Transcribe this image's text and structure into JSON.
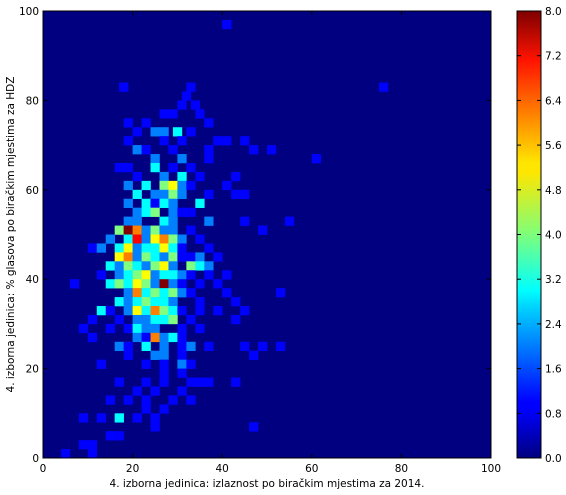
{
  "chart_data": {
    "type": "heatmap",
    "title": "",
    "xlabel": "4. izborna jedinica: izlaznost po biračkim mjestima za 2014.",
    "ylabel": "4. izborna jedinica: % glasova po biračkim mjestima za HDZ",
    "xlim": [
      0,
      100
    ],
    "ylim": [
      0,
      100
    ],
    "bins": 50,
    "grid": false,
    "colormap": "jet",
    "colorbar": {
      "min": 0.0,
      "max": 8.0,
      "ticks": [
        "0.0",
        "0.8",
        "1.6",
        "2.4",
        "3.2",
        "4.0",
        "4.8",
        "5.6",
        "6.4",
        "7.2",
        "8.0"
      ]
    },
    "x_ticks": [
      "0",
      "20",
      "40",
      "60",
      "80",
      "100"
    ],
    "y_ticks": [
      "0",
      "20",
      "40",
      "60",
      "80",
      "100"
    ],
    "cells": [
      [
        40,
        96,
        1
      ],
      [
        75,
        82,
        1
      ],
      [
        32,
        82,
        1
      ],
      [
        31,
        80,
        1
      ],
      [
        30,
        78,
        1
      ],
      [
        33,
        78,
        1
      ],
      [
        17,
        82,
        1
      ],
      [
        26,
        76,
        1
      ],
      [
        28,
        76,
        1
      ],
      [
        34,
        76,
        1
      ],
      [
        36,
        74,
        1
      ],
      [
        18,
        74,
        1
      ],
      [
        22,
        74,
        1
      ],
      [
        24,
        72,
        2
      ],
      [
        26,
        72,
        2
      ],
      [
        20,
        72,
        1
      ],
      [
        29,
        72,
        3
      ],
      [
        32,
        72,
        1
      ],
      [
        38,
        70,
        1
      ],
      [
        40,
        70,
        1
      ],
      [
        44,
        70,
        1
      ],
      [
        18,
        70,
        1
      ],
      [
        26,
        70,
        1
      ],
      [
        30,
        70,
        1
      ],
      [
        46,
        68,
        1
      ],
      [
        50,
        68,
        1
      ],
      [
        20,
        68,
        2
      ],
      [
        22,
        68,
        1
      ],
      [
        28,
        68,
        1
      ],
      [
        36,
        68,
        1
      ],
      [
        60,
        66,
        1
      ],
      [
        36,
        66,
        1
      ],
      [
        24,
        66,
        2
      ],
      [
        30,
        66,
        2
      ],
      [
        16,
        64,
        1
      ],
      [
        18,
        64,
        1
      ],
      [
        24,
        64,
        3
      ],
      [
        28,
        64,
        1
      ],
      [
        32,
        64,
        1
      ],
      [
        26,
        62,
        2
      ],
      [
        30,
        62,
        3
      ],
      [
        34,
        62,
        1
      ],
      [
        20,
        62,
        1
      ],
      [
        42,
        62,
        1
      ],
      [
        22,
        60,
        3
      ],
      [
        26,
        60,
        4
      ],
      [
        28,
        60,
        5
      ],
      [
        30,
        60,
        2
      ],
      [
        18,
        60,
        2
      ],
      [
        32,
        60,
        1
      ],
      [
        40,
        60,
        1
      ],
      [
        20,
        58,
        3
      ],
      [
        24,
        58,
        2
      ],
      [
        26,
        58,
        2
      ],
      [
        28,
        58,
        4
      ],
      [
        30,
        58,
        2
      ],
      [
        36,
        58,
        1
      ],
      [
        42,
        58,
        1
      ],
      [
        44,
        58,
        1
      ],
      [
        18,
        56,
        2
      ],
      [
        22,
        56,
        3
      ],
      [
        24,
        56,
        1
      ],
      [
        26,
        56,
        3
      ],
      [
        28,
        56,
        2
      ],
      [
        34,
        56,
        3
      ],
      [
        20,
        54,
        2
      ],
      [
        22,
        54,
        3
      ],
      [
        24,
        54,
        4
      ],
      [
        28,
        54,
        2
      ],
      [
        30,
        54,
        1
      ],
      [
        32,
        54,
        1
      ],
      [
        18,
        52,
        2
      ],
      [
        20,
        52,
        2
      ],
      [
        26,
        52,
        3
      ],
      [
        28,
        52,
        2
      ],
      [
        36,
        52,
        2
      ],
      [
        54,
        52,
        1
      ],
      [
        44,
        52,
        1
      ],
      [
        16,
        50,
        4
      ],
      [
        18,
        50,
        8
      ],
      [
        20,
        50,
        6
      ],
      [
        22,
        50,
        2
      ],
      [
        24,
        50,
        4
      ],
      [
        26,
        50,
        2
      ],
      [
        28,
        50,
        2
      ],
      [
        32,
        50,
        1
      ],
      [
        14,
        48,
        2
      ],
      [
        18,
        48,
        3
      ],
      [
        20,
        48,
        7
      ],
      [
        22,
        48,
        2
      ],
      [
        24,
        48,
        5
      ],
      [
        26,
        48,
        6
      ],
      [
        28,
        48,
        4
      ],
      [
        30,
        48,
        2
      ],
      [
        34,
        48,
        1
      ],
      [
        48,
        50,
        1
      ],
      [
        10,
        46,
        1
      ],
      [
        12,
        46,
        2
      ],
      [
        16,
        46,
        3
      ],
      [
        18,
        46,
        5
      ],
      [
        20,
        46,
        2
      ],
      [
        22,
        46,
        3
      ],
      [
        24,
        46,
        3
      ],
      [
        26,
        46,
        5
      ],
      [
        28,
        46,
        3
      ],
      [
        30,
        46,
        1
      ],
      [
        36,
        46,
        1
      ],
      [
        16,
        44,
        5
      ],
      [
        18,
        44,
        6
      ],
      [
        20,
        44,
        2
      ],
      [
        22,
        44,
        4
      ],
      [
        24,
        44,
        3
      ],
      [
        26,
        44,
        2
      ],
      [
        28,
        44,
        4
      ],
      [
        30,
        44,
        1
      ],
      [
        32,
        44,
        1
      ],
      [
        34,
        44,
        2
      ],
      [
        38,
        44,
        1
      ],
      [
        14,
        42,
        3
      ],
      [
        16,
        42,
        2
      ],
      [
        18,
        42,
        4
      ],
      [
        20,
        42,
        3
      ],
      [
        22,
        42,
        2
      ],
      [
        24,
        42,
        4
      ],
      [
        26,
        42,
        5
      ],
      [
        28,
        42,
        2
      ],
      [
        32,
        42,
        4
      ],
      [
        34,
        42,
        3
      ],
      [
        36,
        42,
        2
      ],
      [
        12,
        40,
        1
      ],
      [
        16,
        40,
        2
      ],
      [
        18,
        40,
        3
      ],
      [
        20,
        40,
        4
      ],
      [
        22,
        40,
        5
      ],
      [
        24,
        40,
        2
      ],
      [
        26,
        40,
        3
      ],
      [
        28,
        40,
        3
      ],
      [
        30,
        40,
        2
      ],
      [
        32,
        40,
        1
      ],
      [
        36,
        40,
        1
      ],
      [
        40,
        40,
        1
      ],
      [
        6,
        38,
        1
      ],
      [
        14,
        38,
        3
      ],
      [
        16,
        38,
        4
      ],
      [
        18,
        38,
        3
      ],
      [
        20,
        38,
        5
      ],
      [
        22,
        38,
        4
      ],
      [
        24,
        38,
        2
      ],
      [
        26,
        38,
        8
      ],
      [
        28,
        38,
        2
      ],
      [
        30,
        38,
        1
      ],
      [
        34,
        38,
        1
      ],
      [
        38,
        38,
        1
      ],
      [
        18,
        36,
        2
      ],
      [
        20,
        36,
        6
      ],
      [
        22,
        36,
        3
      ],
      [
        24,
        36,
        4
      ],
      [
        26,
        36,
        3
      ],
      [
        28,
        36,
        4
      ],
      [
        30,
        36,
        2
      ],
      [
        32,
        36,
        1
      ],
      [
        52,
        36,
        1
      ],
      [
        40,
        36,
        1
      ],
      [
        16,
        34,
        3
      ],
      [
        18,
        34,
        2
      ],
      [
        20,
        34,
        3
      ],
      [
        22,
        34,
        4
      ],
      [
        24,
        34,
        3
      ],
      [
        26,
        34,
        3
      ],
      [
        28,
        34,
        2
      ],
      [
        34,
        34,
        1
      ],
      [
        42,
        34,
        1
      ],
      [
        12,
        32,
        3
      ],
      [
        14,
        32,
        1
      ],
      [
        18,
        32,
        2
      ],
      [
        20,
        32,
        5
      ],
      [
        22,
        32,
        3
      ],
      [
        24,
        32,
        6
      ],
      [
        26,
        32,
        4
      ],
      [
        28,
        32,
        3
      ],
      [
        30,
        32,
        1
      ],
      [
        34,
        32,
        1
      ],
      [
        38,
        32,
        1
      ],
      [
        44,
        32,
        1
      ],
      [
        10,
        30,
        1
      ],
      [
        16,
        30,
        1
      ],
      [
        20,
        30,
        2
      ],
      [
        22,
        30,
        2
      ],
      [
        24,
        30,
        3
      ],
      [
        26,
        30,
        3
      ],
      [
        28,
        30,
        4
      ],
      [
        32,
        30,
        1
      ],
      [
        42,
        30,
        1
      ],
      [
        8,
        28,
        1
      ],
      [
        14,
        28,
        1
      ],
      [
        18,
        28,
        1
      ],
      [
        20,
        28,
        3
      ],
      [
        22,
        28,
        2
      ],
      [
        24,
        28,
        2
      ],
      [
        30,
        28,
        1
      ],
      [
        34,
        28,
        1
      ],
      [
        10,
        26,
        1
      ],
      [
        20,
        26,
        2
      ],
      [
        22,
        26,
        1
      ],
      [
        24,
        26,
        6
      ],
      [
        26,
        26,
        2
      ],
      [
        28,
        26,
        3
      ],
      [
        30,
        26,
        1
      ],
      [
        16,
        24,
        2
      ],
      [
        18,
        24,
        1
      ],
      [
        22,
        24,
        3
      ],
      [
        26,
        24,
        2
      ],
      [
        30,
        24,
        1
      ],
      [
        32,
        24,
        2
      ],
      [
        36,
        24,
        1
      ],
      [
        44,
        24,
        1
      ],
      [
        48,
        24,
        1
      ],
      [
        52,
        24,
        1
      ],
      [
        18,
        22,
        1
      ],
      [
        24,
        22,
        2
      ],
      [
        26,
        22,
        2
      ],
      [
        30,
        22,
        1
      ],
      [
        46,
        22,
        1
      ],
      [
        12,
        20,
        1
      ],
      [
        22,
        20,
        1
      ],
      [
        26,
        20,
        1
      ],
      [
        30,
        20,
        2
      ],
      [
        32,
        20,
        1
      ],
      [
        26,
        18,
        1
      ],
      [
        30,
        18,
        1
      ],
      [
        32,
        16,
        1
      ],
      [
        16,
        16,
        1
      ],
      [
        22,
        16,
        1
      ],
      [
        26,
        16,
        1
      ],
      [
        34,
        16,
        1
      ],
      [
        36,
        16,
        1
      ],
      [
        42,
        16,
        1
      ],
      [
        20,
        14,
        1
      ],
      [
        24,
        14,
        1
      ],
      [
        30,
        14,
        1
      ],
      [
        14,
        12,
        1
      ],
      [
        18,
        12,
        1
      ],
      [
        22,
        12,
        1
      ],
      [
        28,
        12,
        1
      ],
      [
        32,
        12,
        1
      ],
      [
        22,
        10,
        1
      ],
      [
        26,
        10,
        1
      ],
      [
        8,
        8,
        1
      ],
      [
        12,
        8,
        1
      ],
      [
        16,
        8,
        3
      ],
      [
        20,
        8,
        1
      ],
      [
        24,
        8,
        1
      ],
      [
        46,
        6,
        1
      ],
      [
        14,
        4,
        1
      ],
      [
        16,
        4,
        1
      ],
      [
        8,
        2,
        1
      ],
      [
        10,
        2,
        1
      ],
      [
        4,
        0,
        1
      ],
      [
        10,
        0,
        1
      ],
      [
        24,
        6,
        1
      ]
    ]
  }
}
